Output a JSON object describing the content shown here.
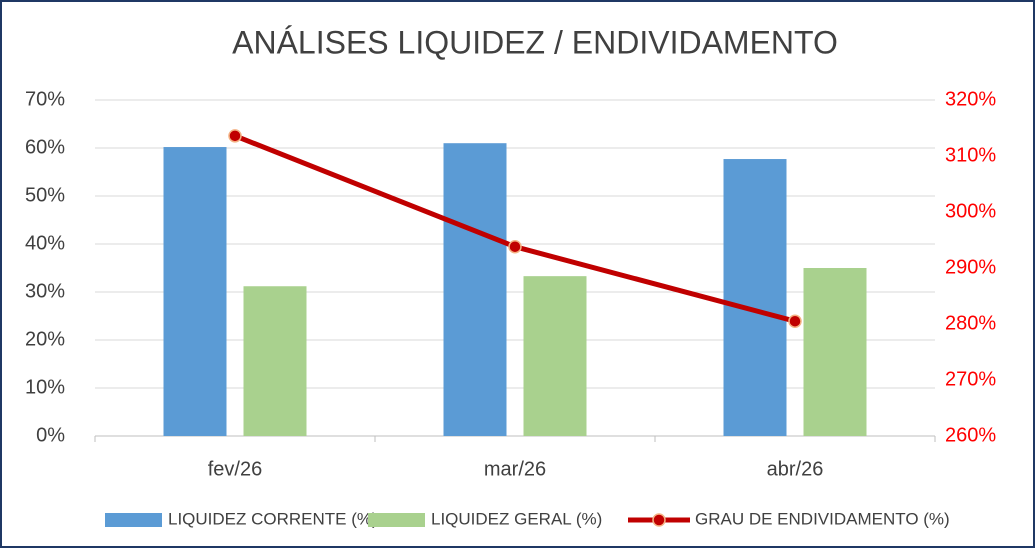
{
  "chart_data": {
    "type": "bar_line",
    "title": "ANÁLISES LIQUIDEZ / ENDIVIDAMENTO",
    "categories": [
      "fev/26",
      "mar/26",
      "abr/26"
    ],
    "series": [
      {
        "name": "LIQUIDEZ CORRENTE (%)",
        "color": "#5b9bd5",
        "type": "bar",
        "values": [
          60.2,
          61.0,
          57.7
        ]
      },
      {
        "name": "LIQUIDEZ GERAL (%)",
        "color": "#a9d18e",
        "type": "bar",
        "values": [
          31.2,
          33.3,
          35.0
        ]
      },
      {
        "name": "GRAU DE ENDIVIDAMENTO (%)",
        "color": "#c00000",
        "type": "line",
        "axis": "y2",
        "values": [
          313.6,
          293.8,
          280.5
        ]
      }
    ],
    "ylim": [
      0,
      70
    ],
    "yticks": [
      {
        "value": 0,
        "label": "0%"
      },
      {
        "value": 10,
        "label": "10%"
      },
      {
        "value": 20,
        "label": "20%"
      },
      {
        "value": 30,
        "label": "30%"
      },
      {
        "value": 40,
        "label": "40%"
      },
      {
        "value": 50,
        "label": "50%"
      },
      {
        "value": 60,
        "label": "60%"
      },
      {
        "value": 70,
        "label": "70%"
      }
    ],
    "y2lim": [
      260,
      320
    ],
    "y2ticks": [
      {
        "value": 260,
        "label": "260%"
      },
      {
        "value": 270,
        "label": "270%"
      },
      {
        "value": 280,
        "label": "280%"
      },
      {
        "value": 290,
        "label": "290%"
      },
      {
        "value": 300,
        "label": "300%"
      },
      {
        "value": 310,
        "label": "310%"
      },
      {
        "value": 320,
        "label": "320%"
      }
    ],
    "y2color": "#ff0000",
    "grid": true,
    "legend": "bottom"
  }
}
